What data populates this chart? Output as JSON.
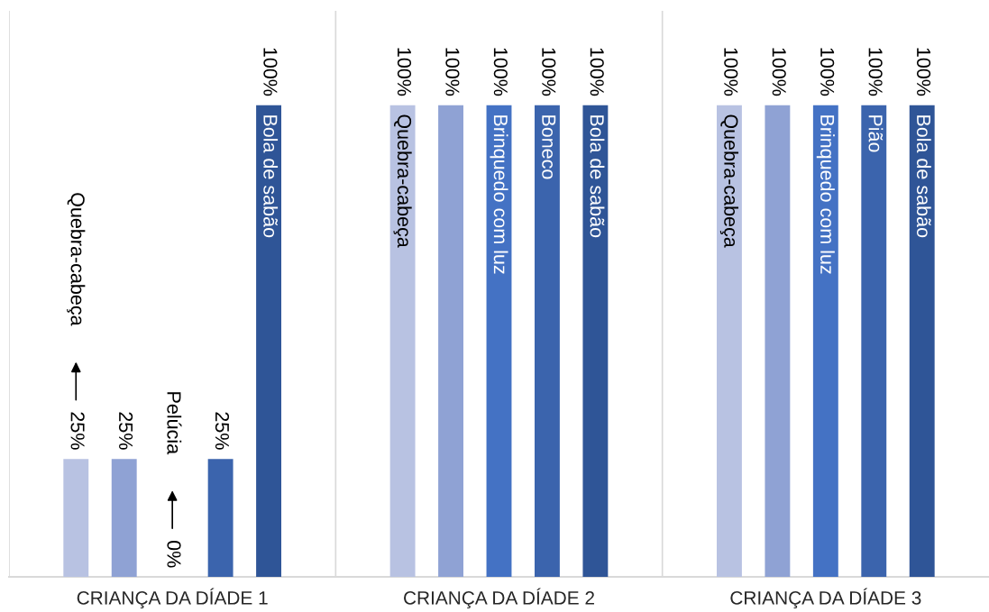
{
  "chart_data": {
    "type": "bar",
    "categories": [
      "CRIANÇA DA DÍADE 1",
      "CRIANÇA DA DÍADE 2",
      "CRIANÇA DA DÍADE 3"
    ],
    "series": [
      {
        "name": "Quebra-cabeça",
        "color": "#b8c2e2",
        "values": [
          25,
          100,
          100
        ],
        "value_labels": [
          "25%",
          "100%",
          "100%"
        ]
      },
      {
        "color": "#8fa2d4",
        "values": [
          25,
          100,
          100
        ],
        "value_labels": [
          "25%",
          "100%",
          "100%"
        ]
      },
      {
        "name": "Pelúcia",
        "values": [
          0,
          null,
          null
        ],
        "value_labels": [
          "0%",
          null,
          null
        ]
      },
      {
        "name": "Brinquedo com luz",
        "color": "#4472c4",
        "values": [
          null,
          100,
          100
        ],
        "value_labels": [
          null,
          "100%",
          "100%"
        ]
      },
      {
        "color": "#3b64ad",
        "values": [
          25,
          null,
          null
        ],
        "value_labels": [
          "25%",
          null,
          null
        ]
      },
      {
        "name": "Boneco",
        "color": "#3b64ad",
        "values": [
          null,
          100,
          null
        ],
        "value_labels": [
          null,
          "100%",
          null
        ]
      },
      {
        "name": "Pião",
        "color": "#3b64ad",
        "values": [
          null,
          null,
          100
        ],
        "value_labels": [
          null,
          null,
          "100%"
        ]
      },
      {
        "name": "Bola de sabão",
        "color": "#2f5597",
        "values": [
          100,
          100,
          100
        ],
        "value_labels": [
          "100%",
          "100%",
          "100%"
        ]
      }
    ],
    "grid": "x"
  }
}
